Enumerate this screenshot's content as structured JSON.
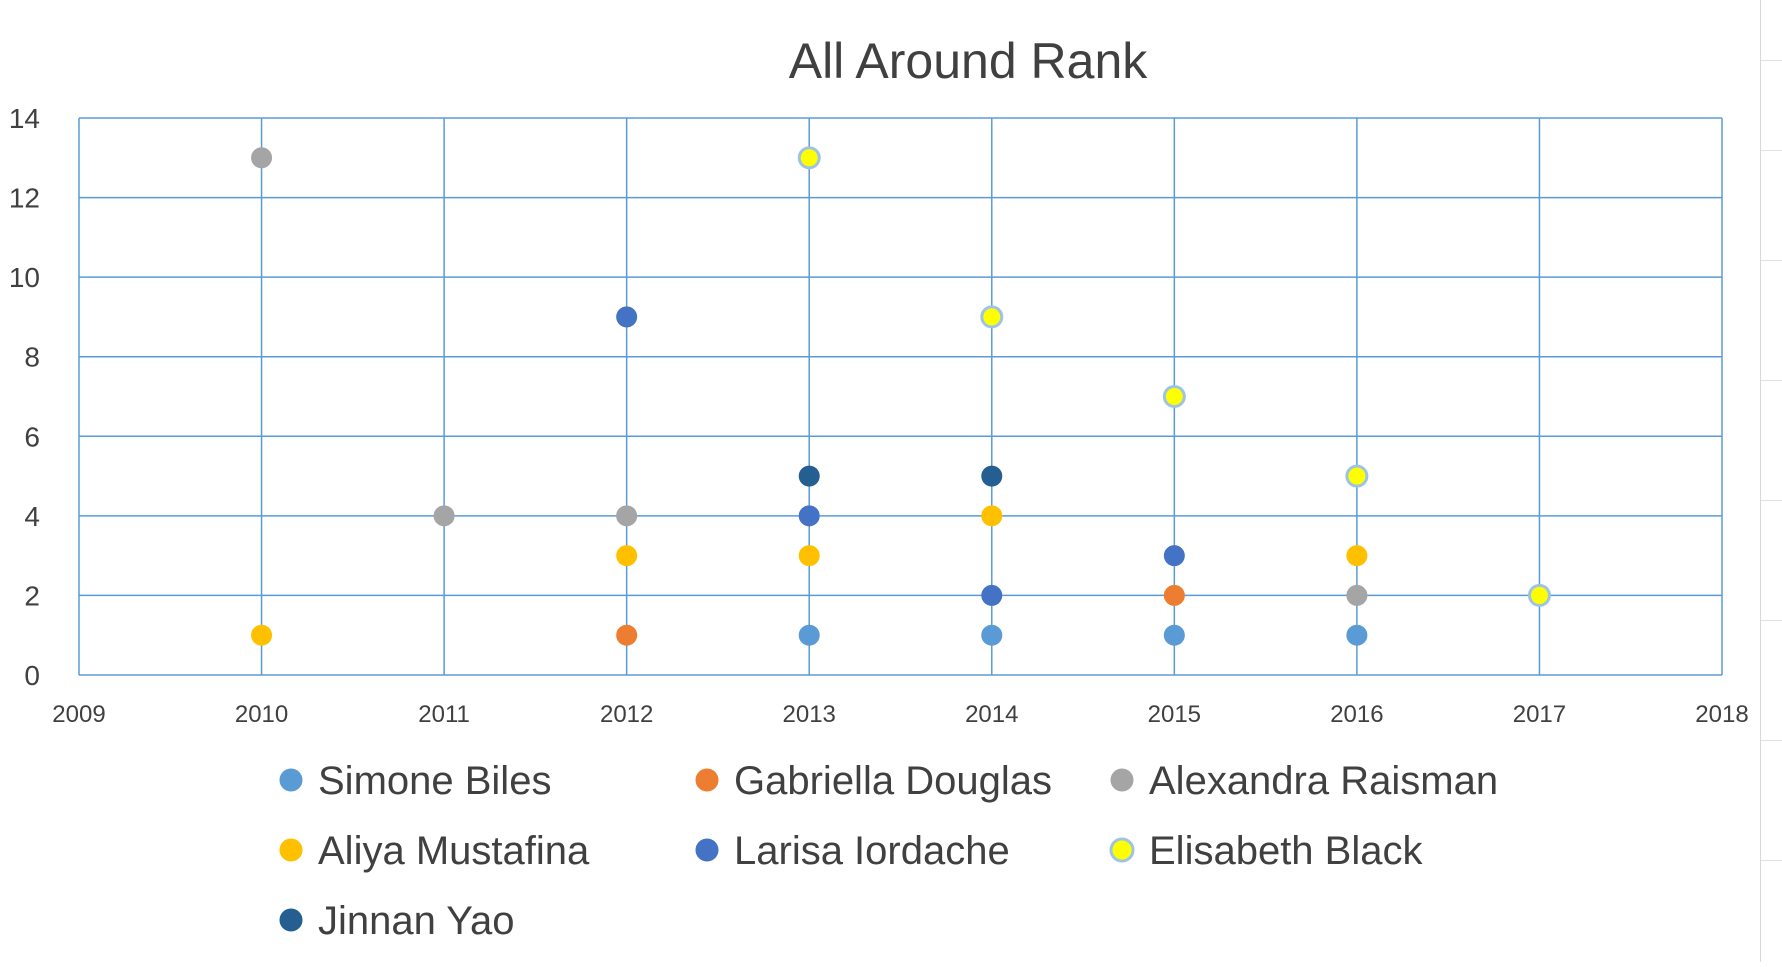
{
  "chart_data": {
    "type": "scatter",
    "title": "All Around Rank",
    "xlabel": "",
    "ylabel": "",
    "xlim": [
      2009,
      2018
    ],
    "ylim": [
      0,
      14
    ],
    "x_ticks": [
      2009,
      2010,
      2011,
      2012,
      2013,
      2014,
      2015,
      2016,
      2017,
      2018
    ],
    "y_ticks": [
      0,
      2,
      4,
      6,
      8,
      10,
      12,
      14
    ],
    "grid": true,
    "legend_position": "bottom",
    "series": [
      {
        "name": "Simone Biles",
        "color": "#5B9BD5",
        "outline": "#5B9BD5",
        "points": [
          [
            2013,
            1
          ],
          [
            2014,
            1
          ],
          [
            2015,
            1
          ],
          [
            2016,
            1
          ]
        ]
      },
      {
        "name": "Gabriella Douglas",
        "color": "#ED7D31",
        "outline": "#ED7D31",
        "points": [
          [
            2012,
            1
          ],
          [
            2015,
            2
          ]
        ]
      },
      {
        "name": "Alexandra Raisman",
        "color": "#A5A5A5",
        "outline": "#A5A5A5",
        "points": [
          [
            2010,
            13
          ],
          [
            2011,
            4
          ],
          [
            2012,
            4
          ],
          [
            2016,
            2
          ]
        ]
      },
      {
        "name": "Aliya Mustafina",
        "color": "#FFC000",
        "outline": "#FFC000",
        "points": [
          [
            2010,
            1
          ],
          [
            2012,
            3
          ],
          [
            2013,
            3
          ],
          [
            2014,
            4
          ],
          [
            2016,
            3
          ]
        ]
      },
      {
        "name": "Larisa Iordache",
        "color": "#4472C4",
        "outline": "#4472C4",
        "points": [
          [
            2012,
            9
          ],
          [
            2013,
            4
          ],
          [
            2014,
            2
          ],
          [
            2015,
            3
          ]
        ]
      },
      {
        "name": "Elisabeth Black",
        "color": "#FFFF00",
        "outline": "#9DC3E6",
        "points": [
          [
            2013,
            13
          ],
          [
            2014,
            9
          ],
          [
            2015,
            7
          ],
          [
            2016,
            5
          ],
          [
            2017,
            2
          ]
        ]
      },
      {
        "name": "Jinnan Yao",
        "color": "#255E91",
        "outline": "#255E91",
        "points": [
          [
            2013,
            5
          ],
          [
            2014,
            5
          ]
        ]
      }
    ]
  }
}
